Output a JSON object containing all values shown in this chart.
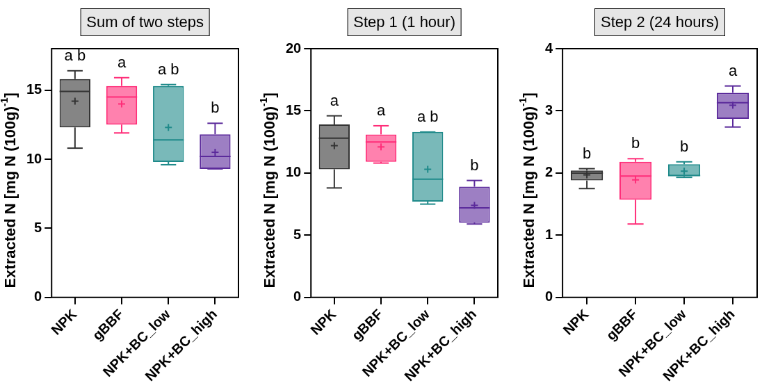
{
  "chart_data": [
    {
      "type": "box",
      "title": "Sum of two steps",
      "ylabel": "Extracted N [mg N (100g)$^{-1}$]",
      "categories": [
        "NPK",
        "gBBF",
        "NPK+BC_low",
        "NPK+BC_high"
      ],
      "colors": [
        "#333333",
        "#ff2d78",
        "#1f8a8a",
        "#5b2a9b"
      ],
      "boxes": [
        {
          "low": 10.8,
          "q1": 12.3,
          "median": 14.9,
          "q3": 15.8,
          "high": 16.4,
          "mean": 14.2
        },
        {
          "low": 11.9,
          "q1": 12.5,
          "median": 14.5,
          "q3": 15.3,
          "high": 15.9,
          "mean": 14.0
        },
        {
          "low": 9.6,
          "q1": 9.8,
          "median": 11.4,
          "q3": 15.3,
          "high": 15.4,
          "mean": 12.3
        },
        {
          "low": 9.3,
          "q1": 9.3,
          "median": 10.2,
          "q3": 11.8,
          "high": 12.6,
          "mean": 10.5
        }
      ],
      "ylim": [
        0,
        18
      ],
      "yticks": [
        0,
        5,
        10,
        15
      ],
      "grid": false,
      "annotations": [
        "a b",
        "a",
        "a b",
        "b"
      ]
    },
    {
      "type": "box",
      "title": "Step 1 (1 hour)",
      "ylabel": "Extracted N [mg N (100g)$^{-1}$]",
      "categories": [
        "NPK",
        "gBBF",
        "NPK+BC_low",
        "NPK+BC_high"
      ],
      "colors": [
        "#333333",
        "#ff2d78",
        "#1f8a8a",
        "#5b2a9b"
      ],
      "boxes": [
        {
          "low": 8.8,
          "q1": 10.3,
          "median": 12.8,
          "q3": 13.9,
          "high": 14.6,
          "mean": 12.2
        },
        {
          "low": 10.8,
          "q1": 10.9,
          "median": 12.5,
          "q3": 13.1,
          "high": 13.8,
          "mean": 12.1
        },
        {
          "low": 7.5,
          "q1": 7.7,
          "median": 9.5,
          "q3": 13.3,
          "high": 13.3,
          "mean": 10.3
        },
        {
          "low": 5.9,
          "q1": 6.0,
          "median": 7.2,
          "q3": 8.9,
          "high": 9.4,
          "mean": 7.4
        }
      ],
      "ylim": [
        0,
        20
      ],
      "yticks": [
        0,
        5,
        10,
        15,
        20
      ],
      "grid": false,
      "annotations": [
        "a",
        "a",
        "a b",
        "b"
      ]
    },
    {
      "type": "box",
      "title": "Step 2 (24 hours)",
      "ylabel": "Extracted N [mg N (100g)$^{-1}$]",
      "categories": [
        "NPK",
        "gBBF",
        "NPK+BC_low",
        "NPK+BC_high"
      ],
      "colors": [
        "#333333",
        "#ff2d78",
        "#1f8a8a",
        "#5b2a9b"
      ],
      "boxes": [
        {
          "low": 1.75,
          "q1": 1.88,
          "median": 2.0,
          "q3": 2.04,
          "high": 2.07,
          "mean": 1.97
        },
        {
          "low": 1.18,
          "q1": 1.57,
          "median": 1.95,
          "q3": 2.18,
          "high": 2.23,
          "mean": 1.89
        },
        {
          "low": 1.93,
          "q1": 1.95,
          "median": 1.96,
          "q3": 2.14,
          "high": 2.18,
          "mean": 2.03
        },
        {
          "low": 2.74,
          "q1": 2.87,
          "median": 3.13,
          "q3": 3.29,
          "high": 3.4,
          "mean": 3.09
        }
      ],
      "ylim": [
        0,
        4
      ],
      "yticks": [
        0,
        1,
        2,
        3,
        4
      ],
      "grid": false,
      "annotations": [
        "b",
        "b",
        "b",
        "a"
      ]
    }
  ]
}
